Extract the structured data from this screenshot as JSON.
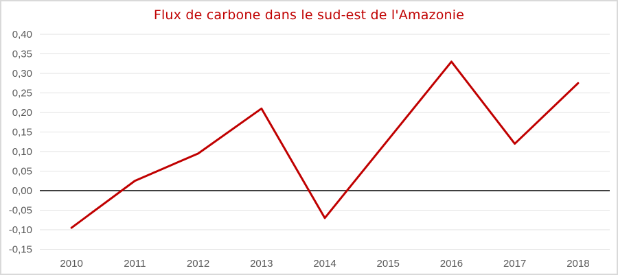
{
  "window": {
    "background_color": "#ffffff",
    "border_color": "#d9d9d9"
  },
  "chart_data": {
    "type": "line",
    "title": "Flux de carbone dans le sud-est de l'Amazonie",
    "categories": [
      "2010",
      "2011",
      "2012",
      "2013",
      "2014",
      "2015",
      "2016",
      "2017",
      "2018"
    ],
    "values": [
      -0.095,
      0.025,
      0.095,
      0.21,
      -0.07,
      0.13,
      0.33,
      0.12,
      0.275
    ],
    "xlabel": "",
    "ylabel": "",
    "ylim": [
      -0.15,
      0.4
    ],
    "ytick_step": 0.05,
    "ytick_labels": [
      "0,40",
      "0,35",
      "0,30",
      "0,25",
      "0,20",
      "0,15",
      "0,10",
      "0,05",
      "0,00",
      "-0,05",
      "-0,10",
      "-0,15"
    ],
    "grid": true,
    "legend_position": "none",
    "colors": {
      "line": "#c00000",
      "title": "#c00000",
      "gridline": "#e2e2e2",
      "zero_axis": "#3f3f3f",
      "axis_text": "#595959"
    }
  }
}
